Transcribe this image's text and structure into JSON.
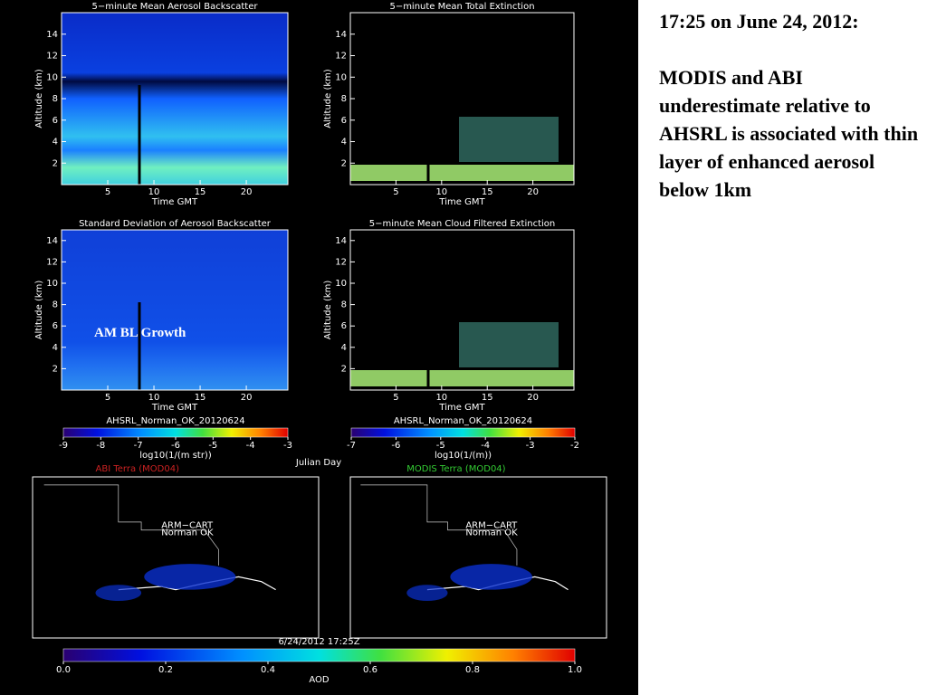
{
  "chart_data": [
    {
      "type": "heatmap",
      "title": "5−minute Mean Aerosol Backscatter",
      "xlabel": "Time GMT",
      "ylabel": "Altitude (km)",
      "xlim": [
        0,
        24.5
      ],
      "ylim": [
        0,
        16
      ],
      "xticks": [
        5,
        10,
        15,
        20
      ],
      "yticks": [
        2,
        4,
        6,
        8,
        10,
        12,
        14
      ]
    },
    {
      "type": "heatmap",
      "title": "5−minute Mean Total Extinction",
      "xlabel": "Time GMT",
      "ylabel": "Altitude (km)",
      "xlim": [
        0,
        24.5
      ],
      "ylim": [
        0,
        16
      ],
      "xticks": [
        5,
        10,
        15,
        20
      ],
      "yticks": [
        2,
        4,
        6,
        8,
        10,
        12,
        14
      ]
    },
    {
      "type": "heatmap",
      "title": "Standard Deviation of Aerosol Backscatter",
      "xlabel": "Time GMT",
      "ylabel": "Altitude (km)",
      "xlim": [
        0,
        24.5
      ],
      "ylim": [
        0,
        15
      ],
      "xticks": [
        5,
        10,
        15,
        20
      ],
      "yticks": [
        2,
        4,
        6,
        8,
        10,
        12,
        14
      ]
    },
    {
      "type": "heatmap",
      "title": "5−minute Mean Cloud Filtered Extinction",
      "xlabel": "Time GMT",
      "ylabel": "Altitude (km)",
      "xlim": [
        0,
        24.5
      ],
      "ylim": [
        0,
        15
      ],
      "xticks": [
        5,
        10,
        15,
        20
      ],
      "yticks": [
        2,
        4,
        6,
        8,
        10,
        12,
        14
      ]
    },
    {
      "type": "colorbar",
      "title": "AHSRL_Norman_OK_20120624",
      "xlabel": "log10(1/(m str))",
      "xlim": [
        -9,
        -3
      ],
      "xticks": [
        -9,
        -8,
        -7,
        -6,
        -5,
        -4,
        -3
      ]
    },
    {
      "type": "colorbar",
      "title": "AHSRL_Norman_OK_20120624",
      "xlabel": "log10(1/(m))",
      "xlim": [
        -7,
        -2
      ],
      "xticks": [
        -7,
        -6,
        -5,
        -4,
        -3,
        -2
      ]
    },
    {
      "type": "map",
      "title": "ABI  Terra (MOD04)",
      "color": "#cc2222",
      "labels": [
        "ARM−CART",
        "Norman OK"
      ]
    },
    {
      "type": "map",
      "title": "MODIS  Terra (MOD04)",
      "color": "#33cc33",
      "labels": [
        "ARM−CART",
        "Norman OK"
      ]
    },
    {
      "type": "colorbar",
      "title": "6/24/2012 17:25Z",
      "xlabel": "AOD",
      "xlim": [
        0,
        1
      ],
      "xticks": [
        {
          "value": 0,
          "label": "0.0"
        },
        {
          "value": 0.2,
          "label": "0.2"
        },
        {
          "value": 0.4,
          "label": "0.4"
        },
        {
          "value": 0.6,
          "label": "0.6"
        },
        {
          "value": 0.8,
          "label": "0.8"
        },
        {
          "value": 1,
          "label": "1.0"
        }
      ]
    }
  ],
  "julian_label": "Julian Day",
  "annotation": "AM BL Growth",
  "notes": {
    "heading": "17:25 on June 24, 2012:",
    "body": "MODIS and ABI underestimate relative to AHSRL is associated with thin layer of enhanced aerosol below 1km"
  }
}
